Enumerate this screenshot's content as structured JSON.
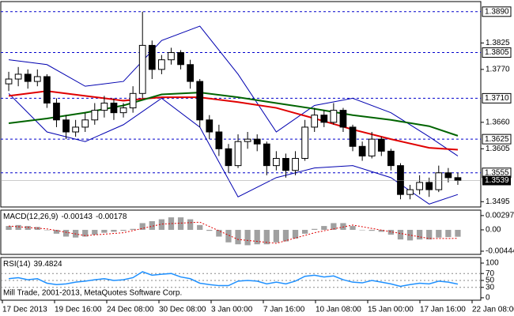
{
  "chart_data": [
    {
      "type": "candlestick",
      "ohlc": [
        [
          1.374,
          1.3765,
          1.3725,
          1.375
        ],
        [
          1.375,
          1.3775,
          1.3735,
          1.376
        ],
        [
          1.376,
          1.377,
          1.373,
          1.3745
        ],
        [
          1.3745,
          1.377,
          1.3735,
          1.3755
        ],
        [
          1.3755,
          1.376,
          1.369,
          1.37
        ],
        [
          1.37,
          1.371,
          1.365,
          1.3665
        ],
        [
          1.3665,
          1.3675,
          1.3625,
          1.364
        ],
        [
          1.364,
          1.3665,
          1.363,
          1.365
        ],
        [
          1.365,
          1.368,
          1.364,
          1.3665
        ],
        [
          1.3665,
          1.37,
          1.3655,
          1.3685
        ],
        [
          1.3685,
          1.3715,
          1.367,
          1.37
        ],
        [
          1.37,
          1.371,
          1.3665,
          1.368
        ],
        [
          1.368,
          1.37,
          1.367,
          1.369
        ],
        [
          1.369,
          1.3735,
          1.368,
          1.372
        ],
        [
          1.372,
          1.389,
          1.371,
          1.382
        ],
        [
          1.382,
          1.383,
          1.375,
          1.377
        ],
        [
          1.377,
          1.38,
          1.376,
          1.379
        ],
        [
          1.379,
          1.3815,
          1.378,
          1.3805
        ],
        [
          1.3805,
          1.381,
          1.377,
          1.378
        ],
        [
          1.378,
          1.379,
          1.373,
          1.3745
        ],
        [
          1.3745,
          1.375,
          1.365,
          1.3665
        ],
        [
          1.3665,
          1.3675,
          1.3625,
          1.364
        ],
        [
          1.364,
          1.3655,
          1.359,
          1.3605
        ],
        [
          1.3605,
          1.3615,
          1.3555,
          1.357
        ],
        [
          1.357,
          1.3635,
          1.3565,
          1.362
        ],
        [
          1.362,
          1.364,
          1.3605,
          1.3625
        ],
        [
          1.3625,
          1.3635,
          1.36,
          1.3615
        ],
        [
          1.3615,
          1.362,
          1.355,
          1.357
        ],
        [
          1.357,
          1.36,
          1.356,
          1.3585
        ],
        [
          1.3585,
          1.3595,
          1.3545,
          1.356
        ],
        [
          1.356,
          1.36,
          1.355,
          1.3585
        ],
        [
          1.3585,
          1.3665,
          1.358,
          1.365
        ],
        [
          1.365,
          1.369,
          1.364,
          1.3675
        ],
        [
          1.3675,
          1.3685,
          1.365,
          1.366
        ],
        [
          1.366,
          1.37,
          1.3655,
          1.3685
        ],
        [
          1.3685,
          1.369,
          1.364,
          1.365
        ],
        [
          1.365,
          1.3655,
          1.36,
          1.361
        ],
        [
          1.361,
          1.362,
          1.358,
          1.359
        ],
        [
          1.359,
          1.364,
          1.3585,
          1.3625
        ],
        [
          1.3625,
          1.363,
          1.359,
          1.36
        ],
        [
          1.36,
          1.3605,
          1.356,
          1.357
        ],
        [
          1.357,
          1.3575,
          1.35,
          1.351
        ],
        [
          1.351,
          1.353,
          1.35,
          1.352
        ],
        [
          1.352,
          1.355,
          1.351,
          1.3535
        ],
        [
          1.3535,
          1.3545,
          1.3505,
          1.352
        ],
        [
          1.352,
          1.357,
          1.3515,
          1.3555
        ],
        [
          1.3555,
          1.3565,
          1.3535,
          1.3545
        ],
        [
          1.3545,
          1.3555,
          1.353,
          1.3539
        ]
      ],
      "ylim": [
        1.3484,
        1.3911
      ],
      "yticks": [
        1.3825,
        {
          "value": 1.377,
          "label": "1.3770"
        },
        {
          "value": 1.366,
          "label": "1.3660"
        },
        1.3605,
        1.3495
      ],
      "levels": [
        {
          "value": 1.389,
          "label": "1.3890"
        },
        1.3805,
        {
          "value": 1.371,
          "label": "1.3710"
        },
        1.3625,
        1.3555
      ],
      "level_color": "#0000cc",
      "last_price": 1.3539,
      "line_x": [
        1,
        5,
        9,
        13,
        17,
        21,
        25,
        29,
        33,
        37,
        41,
        45,
        48
      ],
      "overlays": [
        {
          "color": "#0000b0",
          "values": [
            1.379,
            1.378,
            1.3735,
            1.3745,
            1.383,
            1.386,
            1.376,
            1.364,
            1.3695,
            1.371,
            1.368,
            1.363,
            1.359
          ]
        },
        {
          "color": "#0000b0",
          "values": [
            1.372,
            1.364,
            1.362,
            1.3655,
            1.371,
            1.365,
            1.3505,
            1.3545,
            1.3565,
            1.357,
            1.3545,
            1.349,
            1.351
          ]
        },
        {
          "color": "#e00000",
          "values": [
            1.3715,
            1.3725,
            1.3715,
            1.3705,
            1.3712,
            1.3712,
            1.3702,
            1.369,
            1.3668,
            1.3645,
            1.3625,
            1.3607,
            1.3603
          ]
        },
        {
          "color": "#006400",
          "values": [
            1.3658,
            1.3668,
            1.368,
            1.3695,
            1.3718,
            1.3722,
            1.3712,
            1.37,
            1.3688,
            1.3675,
            1.3665,
            1.3652,
            1.3632
          ]
        }
      ],
      "dates": [
        "17 Dec 2013",
        "19 Dec 16:00",
        "24 Dec 08:00",
        "30 Dec 08:00",
        "3 Jan 00:00",
        "7 Jan 16:00",
        "10 Jan 08:00",
        "15 Jan 00:00",
        "17 Jan 16:00",
        "22 Jan 08:00"
      ],
      "copyright": "Mill Trade, 2001-2013, MetaQuotes Software Corp."
    },
    {
      "type": "macd",
      "label": "MACD(12,26,9)",
      "histogram": {
        "color": "#a0a0a0",
        "values": [
          0.0008,
          0.001,
          0.0008,
          0.0006,
          0.0,
          -0.0008,
          -0.0014,
          -0.0016,
          -0.0014,
          -0.001,
          -0.0006,
          -0.0004,
          -0.0002,
          0.0002,
          0.0014,
          0.0018,
          0.0022,
          0.0026,
          0.0026,
          0.0022,
          0.001,
          -0.0002,
          -0.0014,
          -0.0026,
          -0.003,
          -0.0032,
          -0.003,
          -0.003,
          -0.0026,
          -0.0024,
          -0.0018,
          -0.0008,
          0.0002,
          0.0008,
          0.0014,
          0.0014,
          0.0008,
          0.0,
          -0.0002,
          -0.0004,
          -0.001,
          -0.002,
          -0.0022,
          -0.002,
          -0.002,
          -0.0016,
          -0.0015,
          -0.00143
        ]
      },
      "signal": {
        "color": "#e00000",
        "values": [
          0.0008,
          0.0002,
          -0.0012,
          -0.0006,
          0.0012,
          0.0016,
          -0.002,
          -0.0028,
          -0.0006,
          0.001,
          -0.0004,
          -0.0018,
          -0.00178
        ]
      },
      "ylim": [
        -0.0051,
        0.0041
      ],
      "yticks": [
        0.00297,
        {
          "value": 0,
          "label": "0.00"
        },
        -0.00444
      ]
    },
    {
      "type": "rsi",
      "label": "RSI(14)",
      "color": "#1e90ff",
      "values": [
        55,
        58,
        52,
        55,
        42,
        38,
        40,
        45,
        48,
        52,
        55,
        50,
        52,
        58,
        75,
        65,
        68,
        70,
        60,
        55,
        42,
        38,
        35,
        35,
        48,
        50,
        48,
        40,
        45,
        40,
        48,
        62,
        65,
        60,
        63,
        52,
        45,
        43,
        50,
        45,
        40,
        33,
        38,
        42,
        40,
        48,
        45,
        39.4824
      ],
      "ylim": [
        -7,
        116
      ],
      "yticks": [
        100,
        70,
        50,
        30,
        0
      ]
    }
  ]
}
